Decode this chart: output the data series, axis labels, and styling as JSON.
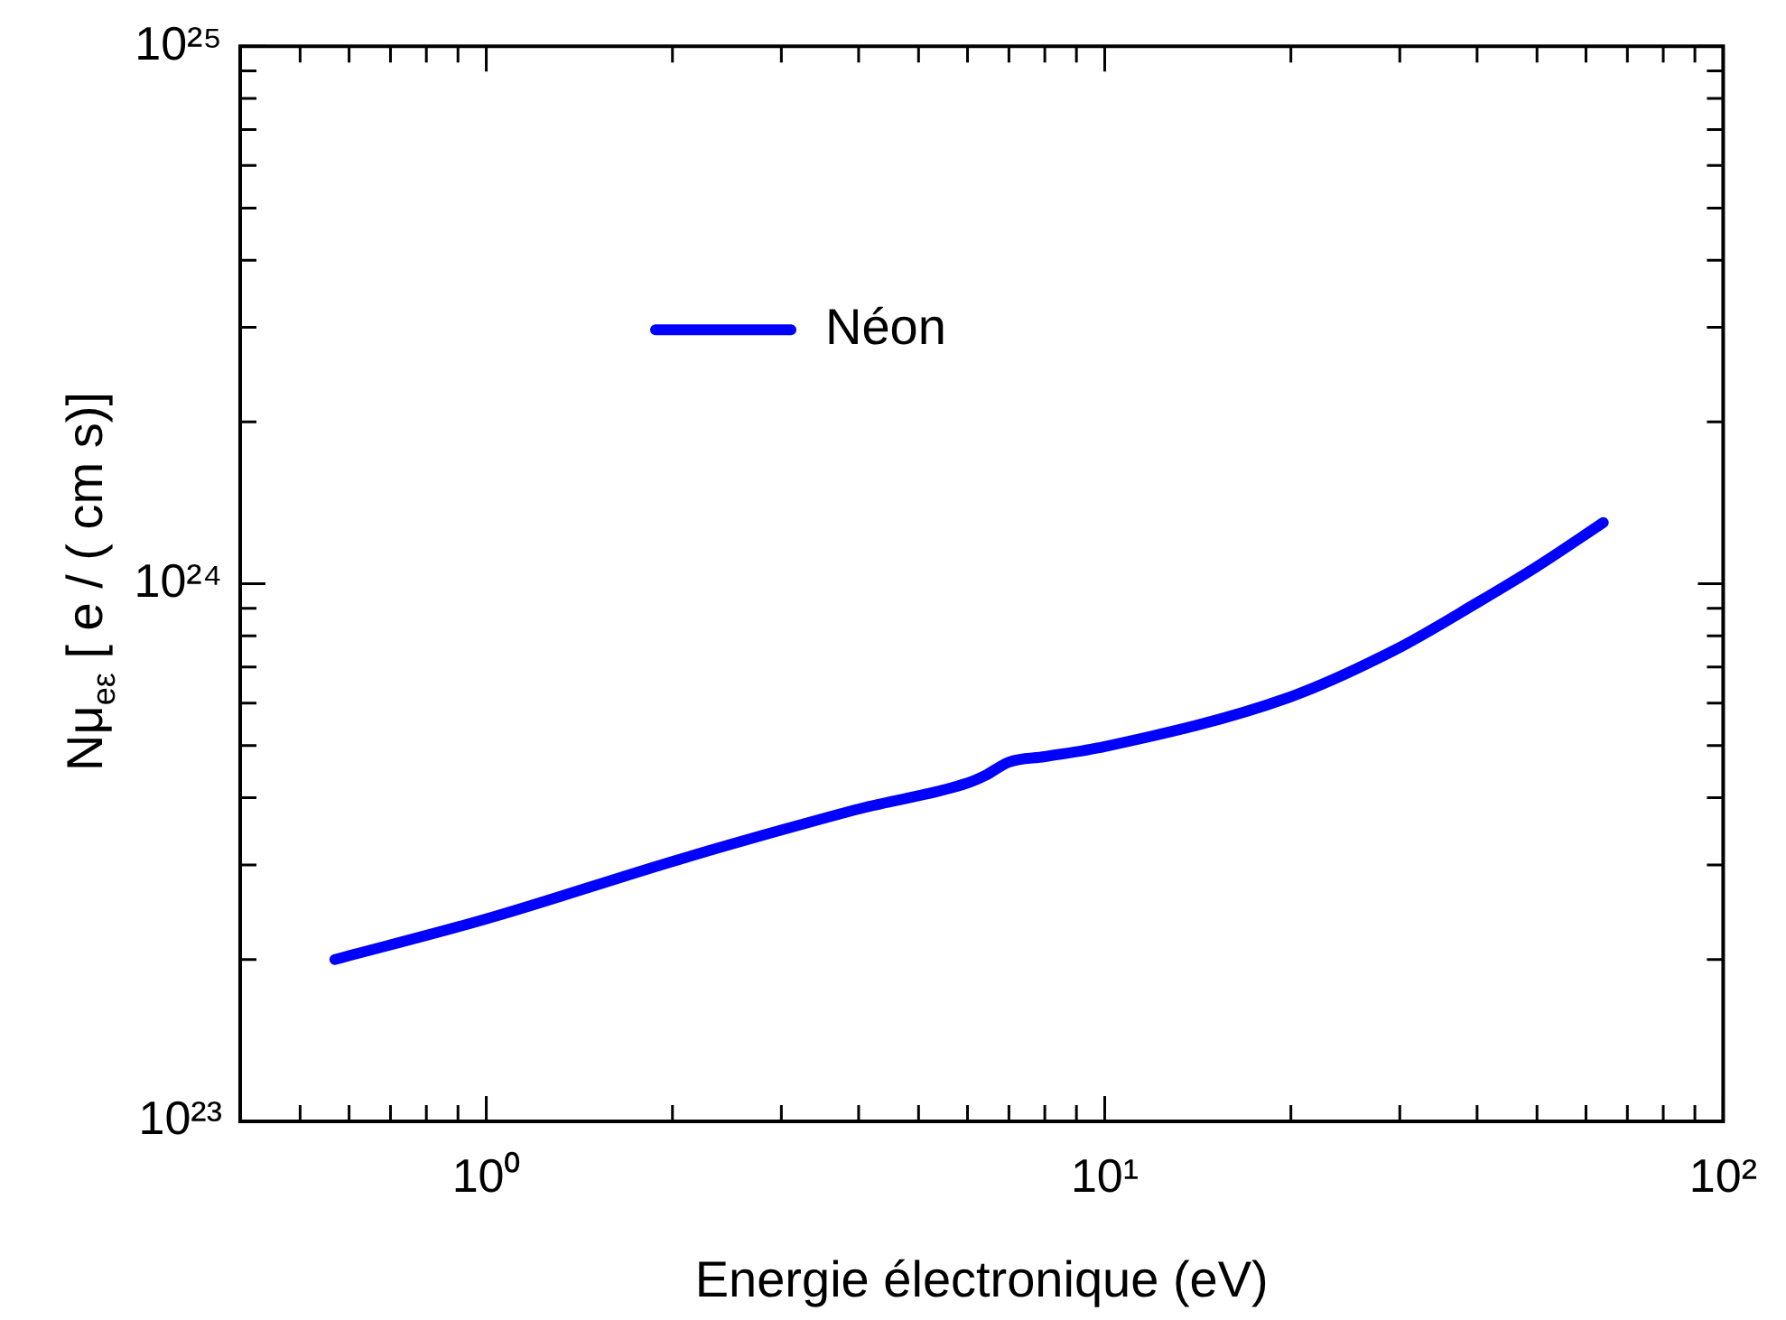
{
  "chart_data": {
    "type": "line",
    "xlabel": "Energie électronique (eV)",
    "ylabel": "Nμ$_{eε}$ [ e / ( cm s)]",
    "log": "xy",
    "grid": false,
    "legend": "top left",
    "marker": "none",
    "line_style": "solid",
    "xlim": [
      0.4,
      100
    ],
    "xticks": [
      {
        "value": 1,
        "label": "10⁰"
      },
      {
        "value": 10,
        "label": "10¹"
      },
      {
        "value": 100,
        "label": "10²"
      }
    ],
    "ylim": [
      1e+23,
      1e+25
    ],
    "yticks": [
      {
        "value": 1e+23,
        "label": "10²³"
      },
      {
        "value": 1e+24,
        "label": "10²⁴"
      },
      {
        "value": 1e+25,
        "label": "10²⁵"
      }
    ],
    "series": [
      {
        "name": "Néon",
        "color": "#0000ff",
        "x": [
          0.569,
          1.0,
          2.01,
          3.02,
          4.03,
          6.0,
          6.41,
          7.0,
          8.0,
          10,
          19.8,
          29.5,
          40.2,
          50.2,
          64
        ],
        "values": [
          2e+23,
          2.38e+23,
          3.05e+23,
          3.49e+23,
          3.82e+23,
          4.26e+23,
          4.4e+23,
          4.66e+23,
          4.77e+23,
          4.98e+23,
          6.14e+23,
          7.54e+23,
          9.25e+23,
          1.08e+24,
          1.3e+24
        ]
      }
    ]
  }
}
